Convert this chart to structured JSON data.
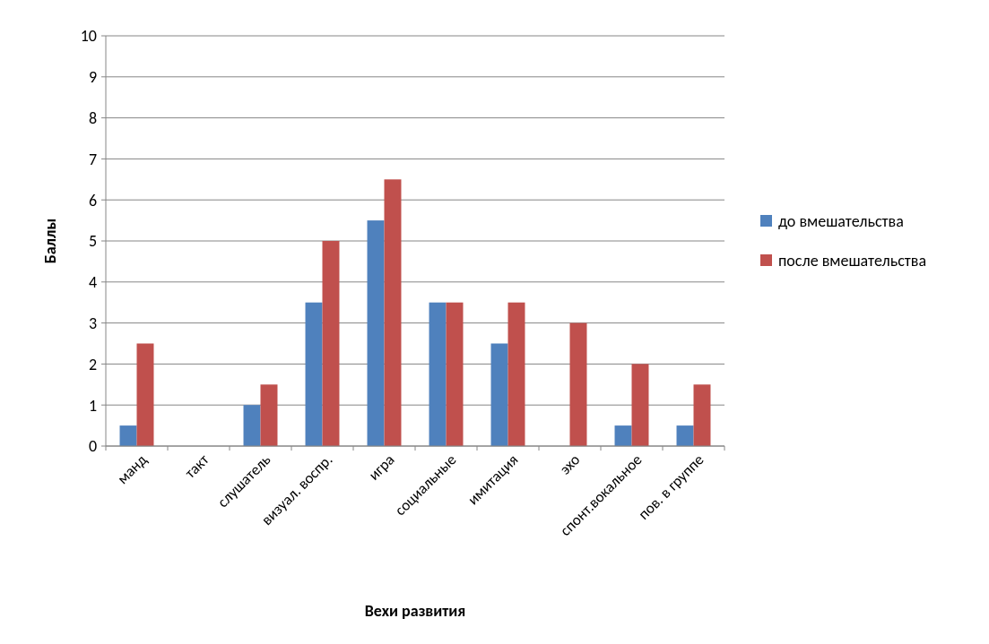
{
  "chart_data": {
    "type": "bar",
    "xlabel": "Вехи развития",
    "ylabel": "Баллы",
    "categories": [
      "манд",
      "такт",
      "слушатель",
      "визуал. воспр.",
      "игра",
      "социальные",
      "имитация",
      "эхо",
      "спонт.вокальное",
      "пов. в группе"
    ],
    "series": [
      {
        "name": "до вмешательства",
        "color": "#4f81bd",
        "values": [
          0.5,
          0,
          1,
          3.5,
          5.5,
          3.5,
          2.5,
          0,
          0.5,
          0.5
        ]
      },
      {
        "name": "после вмешательства",
        "color": "#c0504d",
        "values": [
          2.5,
          0,
          1.5,
          5,
          6.5,
          3.5,
          3.5,
          3,
          2,
          1.5
        ]
      }
    ],
    "ylim": [
      0,
      10
    ],
    "yticks": [
      0,
      1,
      2,
      3,
      4,
      5,
      6,
      7,
      8,
      9,
      10
    ],
    "grid": "y",
    "legend": "right"
  }
}
